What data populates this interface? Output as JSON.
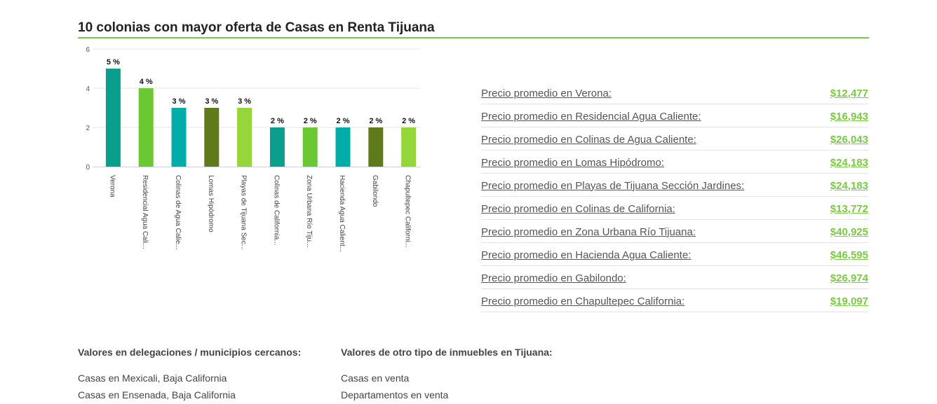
{
  "section": {
    "title": "10 colonias con mayor oferta de Casas en Renta Tijuana"
  },
  "chart_data": {
    "type": "bar",
    "categories": [
      "Verona",
      "Residencial Agua Cali...",
      "Colinas de Agua Calie...",
      "Lomas Hipódromo",
      "Playas de Tijuana Sec...",
      "Colinas de California...",
      "Zona Urbana Río Tiju...",
      "Hacienda Agua Calient...",
      "Gabilondo",
      "Chapultepec Californi..."
    ],
    "values": [
      5,
      4,
      3,
      3,
      3,
      2,
      2,
      2,
      2,
      2
    ],
    "data_labels": [
      "5 %",
      "4 %",
      "3 %",
      "3 %",
      "3 %",
      "2 %",
      "2 %",
      "2 %",
      "2 %",
      "2 %"
    ],
    "colors": [
      "#0a9e8c",
      "#6cc832",
      "#00ada8",
      "#5e7a1b",
      "#95d63b",
      "#0a9e8c",
      "#6cc832",
      "#00ada8",
      "#5e7a1b",
      "#95d63b"
    ],
    "yticks": [
      "0",
      "2",
      "4",
      "6"
    ],
    "ylim": [
      0,
      6
    ],
    "grid": true
  },
  "prices": [
    {
      "label": "Precio promedio en Verona:",
      "value": "$12,477"
    },
    {
      "label": "Precio promedio en Residencial Agua Caliente:",
      "value": "$16,943"
    },
    {
      "label": "Precio promedio en Colinas de Agua Caliente:",
      "value": "$26,043"
    },
    {
      "label": "Precio promedio en Lomas Hipódromo:",
      "value": "$24,183"
    },
    {
      "label": "Precio promedio en Playas de Tijuana Sección Jardines:",
      "value": "$24,183"
    },
    {
      "label": "Precio promedio en Colinas de California:",
      "value": "$13,772"
    },
    {
      "label": "Precio promedio en Zona Urbana Río Tijuana:",
      "value": "$40,925"
    },
    {
      "label": "Precio promedio en Hacienda Agua Caliente:",
      "value": "$46,595"
    },
    {
      "label": "Precio promedio en Gabilondo:",
      "value": "$26,974"
    },
    {
      "label": "Precio promedio en Chapultepec California:",
      "value": "$19,097"
    }
  ],
  "nearby": {
    "title": "Valores en delegaciones / municipios cercanos:",
    "links": [
      "Casas en Mexicali, Baja California",
      "Casas en Ensenada, Baja California"
    ]
  },
  "other": {
    "title": "Valores de otro tipo de inmuebles en Tijuana:",
    "links": [
      "Casas en venta",
      "Departamentos en venta"
    ]
  }
}
